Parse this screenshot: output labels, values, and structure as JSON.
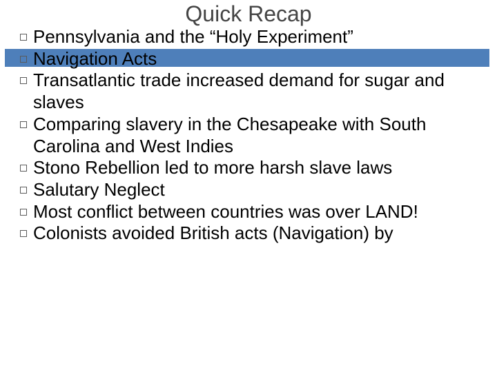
{
  "slide": {
    "title": "Quick Recap",
    "title_color": "#444444",
    "title_fontsize": 32,
    "background_color": "#ffffff",
    "accent_bar_color": "#4e7fba",
    "body_fontsize": 26,
    "body_color": "#000000",
    "bullet_border_color": "#5a5a5a",
    "items": [
      "Pennsylvania and the “Holy Experiment”",
      "Navigation Acts",
      "Transatlantic trade increased demand for sugar and slaves",
      "Comparing slavery in the Chesapeake with South Carolina and West Indies",
      "Stono Rebellion led to more harsh slave laws",
      "Salutary Neglect",
      "Most conflict between countries was over LAND!",
      "Colonists avoided British acts (Navigation) by"
    ]
  }
}
